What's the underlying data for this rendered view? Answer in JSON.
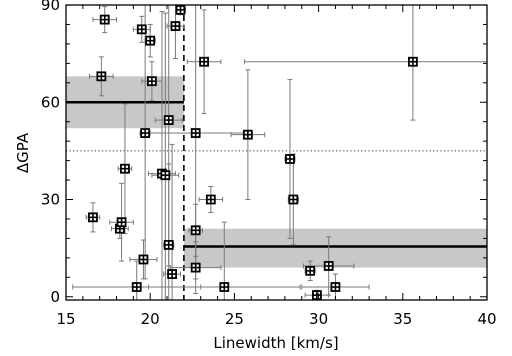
{
  "chart_data": {
    "type": "scatter",
    "title": "",
    "xlabel": "Linewidth [km/s]",
    "ylabel": "ΔGPA",
    "xlim": [
      15,
      40
    ],
    "ylim": [
      -1,
      90
    ],
    "x_ticks": [
      15,
      20,
      25,
      30,
      35,
      40
    ],
    "y_ticks": [
      0,
      30,
      60,
      90
    ],
    "grid": false,
    "marker": "boxed-cross",
    "colors": {
      "points": "#000000",
      "error_bars": "#7a7a7a",
      "shade": "#c8c8c8",
      "mean_lines": "#000000"
    },
    "reference_lines": {
      "horizontal_dotted_y": 45,
      "vertical_dashed_x": 22.0
    },
    "shaded_regions": [
      {
        "x": [
          15,
          22.0
        ],
        "y_range": [
          52,
          68
        ],
        "mean": 60
      },
      {
        "x": [
          22.0,
          40
        ],
        "y_range": [
          9,
          21
        ],
        "mean": 15.5
      }
    ],
    "points": [
      {
        "x": 16.6,
        "y": 24.5,
        "xerr": 0.4,
        "yerr": 4.5
      },
      {
        "x": 17.1,
        "y": 68,
        "xerr": 0.7,
        "yerr": 6
      },
      {
        "x": 17.3,
        "y": 85.5,
        "xerr": 0.7,
        "yerr": 4
      },
      {
        "x": 18.2,
        "y": 21,
        "xerr": 0.5,
        "yerr": 3
      },
      {
        "x": 18.3,
        "y": 23,
        "xerr": 0.7,
        "yerr": 12
      },
      {
        "x": 18.5,
        "y": 39.5,
        "xerr": 0.4,
        "yerr": 20
      },
      {
        "x": 19.2,
        "y": 3,
        "xerr": 3.8,
        "yerr": 8
      },
      {
        "x": 19.5,
        "y": 82.5,
        "xerr": 0.5,
        "yerr": 4
      },
      {
        "x": 19.6,
        "y": 11.5,
        "xerr": 0.8,
        "yerr": 6
      },
      {
        "x": 19.7,
        "y": 50.5,
        "xerr": 0.3,
        "yerr": 45
      },
      {
        "x": 20.0,
        "y": 79,
        "xerr": 0.3,
        "yerr": 5
      },
      {
        "x": 20.1,
        "y": 66.5,
        "xerr": 0.6,
        "yerr": 6
      },
      {
        "x": 20.7,
        "y": 38,
        "xerr": 0.8,
        "yerr": 50
      },
      {
        "x": 20.9,
        "y": 37.5,
        "xerr": 0.8,
        "yerr": 50
      },
      {
        "x": 21.1,
        "y": 16,
        "xerr": 0.3,
        "yerr": 25
      },
      {
        "x": 21.1,
        "y": 54.5,
        "xerr": 0.8,
        "yerr": 45
      },
      {
        "x": 21.3,
        "y": 7,
        "xerr": 0.5,
        "yerr": 40
      },
      {
        "x": 21.5,
        "y": 83.5,
        "xerr": 0.5,
        "yerr": 10
      },
      {
        "x": 21.8,
        "y": 88.5,
        "xerr": 0.3,
        "yerr": 1.5
      },
      {
        "x": 22.7,
        "y": 50.5,
        "xerr": 3.0,
        "yerr": 45
      },
      {
        "x": 22.7,
        "y": 20.5,
        "xerr": 0.4,
        "yerr": 8
      },
      {
        "x": 22.7,
        "y": 9,
        "xerr": 1.5,
        "yerr": 8
      },
      {
        "x": 23.2,
        "y": 72.5,
        "xerr": 1.0,
        "yerr": 16
      },
      {
        "x": 23.6,
        "y": 30,
        "xerr": 0.7,
        "yerr": 4
      },
      {
        "x": 24.4,
        "y": 3,
        "xerr": 4.5,
        "yerr": 20
      },
      {
        "x": 25.8,
        "y": 50,
        "xerr": 1.0,
        "yerr": 20
      },
      {
        "x": 28.3,
        "y": 42.5,
        "xerr": 0.3,
        "yerr": 24.5
      },
      {
        "x": 28.5,
        "y": 30,
        "xerr": 0.3,
        "yerr": 14
      },
      {
        "x": 29.5,
        "y": 8,
        "xerr": 0.3,
        "yerr": 3
      },
      {
        "x": 29.9,
        "y": 0.5,
        "xerr": 0.7,
        "yerr": 1.5
      },
      {
        "x": 30.6,
        "y": 9.5,
        "xerr": 1.5,
        "yerr": 9
      },
      {
        "x": 31.0,
        "y": 3,
        "xerr": 2.0,
        "yerr": 4
      },
      {
        "x": 35.6,
        "y": 72.5,
        "xerr": 10.0,
        "yerr": 18
      }
    ]
  }
}
